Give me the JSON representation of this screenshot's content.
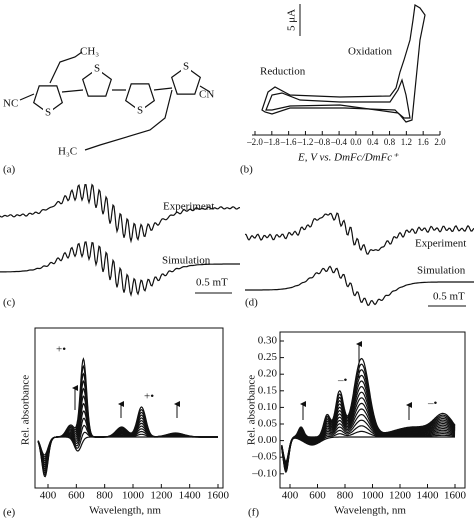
{
  "panel_a": {
    "label": "(a)",
    "ch3": "CH₃",
    "h3c": "H₃C",
    "nc": "NC",
    "cn": "CN",
    "s_labels": [
      "S",
      "S",
      "S",
      "S"
    ]
  },
  "panel_b": {
    "label": "(b)",
    "scale": "5 μA",
    "oxidation": "Oxidation",
    "reduction": "Reduction",
    "x_ticks": [
      "–2.0",
      "–1.8",
      "–1.6",
      "–1.2",
      "–0.8",
      "–0.4",
      "0.0",
      "0.4",
      "0.8",
      "1.2",
      "1.6",
      "2.0"
    ],
    "x_label": "E, V vs. DmFc/DmFc⁺"
  },
  "panel_c": {
    "label": "(c)",
    "experiment": "Experiment",
    "simulation": "Simulation",
    "scale": "0.5 mT"
  },
  "panel_d": {
    "label": "(d)",
    "experiment": "Experiment",
    "simulation": "Simulation",
    "scale": "0.5 mT"
  },
  "panel_e": {
    "label": "(e)",
    "y_label": "Rel. absorbance",
    "x_label": "Wavelength, nm",
    "x_ticks": [
      "400",
      "600",
      "800",
      "1000",
      "1200",
      "1400",
      "1600"
    ],
    "annotations": [
      "+•",
      "+•"
    ]
  },
  "panel_f": {
    "label": "(f)",
    "y_label": "Rel. absorbance",
    "x_label": "Wavelength, nm",
    "y_ticks": [
      "0.30",
      "0.25",
      "0.20",
      "0.15",
      "0.10",
      "0.05",
      "0.00",
      "–0.05",
      "–0.10"
    ],
    "x_ticks": [
      "400",
      "600",
      "800",
      "1000",
      "1200",
      "1400",
      "1600"
    ],
    "annotations": [
      "–•",
      "–•"
    ]
  }
}
